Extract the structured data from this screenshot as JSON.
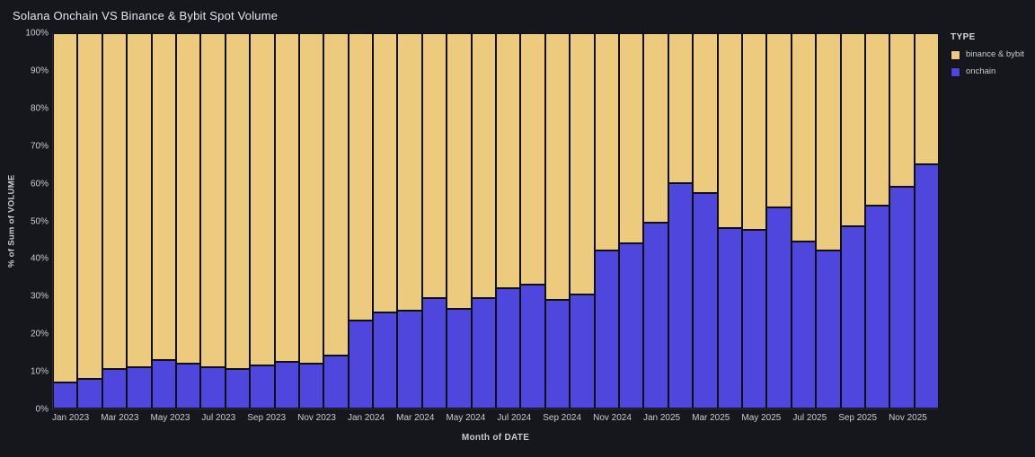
{
  "title": "Solana Onchain VS Binance & Bybit Spot Volume",
  "colors": {
    "background": "#15171c",
    "onchain": "#4f46dd",
    "binance_bybit": "#ecca7e",
    "bar_outline": "#0e0f13",
    "text": "#c9cbd1"
  },
  "chart_data": {
    "type": "bar",
    "stacked": true,
    "stack_mode": "percent",
    "title": "Solana Onchain VS Binance & Bybit Spot Volume",
    "xlabel": "Month of DATE",
    "ylabel": "% of Sum of VOLUME",
    "ylim": [
      0,
      100
    ],
    "grid": false,
    "y_ticks": [
      "0%",
      "10%",
      "20%",
      "30%",
      "40%",
      "50%",
      "60%",
      "70%",
      "80%",
      "90%",
      "100%"
    ],
    "categories": [
      "Jan 2023",
      "Feb 2023",
      "Mar 2023",
      "Apr 2023",
      "May 2023",
      "Jun 2023",
      "Jul 2023",
      "Aug 2023",
      "Sep 2023",
      "Oct 2023",
      "Nov 2023",
      "Dec 2023",
      "Jan 2024",
      "Feb 2024",
      "Mar 2024",
      "Apr 2024",
      "May 2024",
      "Jun 2024",
      "Jul 2024",
      "Aug 2024",
      "Sep 2024",
      "Oct 2024",
      "Nov 2024",
      "Dec 2024",
      "Jan 2025",
      "Feb 2025",
      "Mar 2025",
      "Apr 2025",
      "May 2025",
      "Jun 2025",
      "Jul 2025",
      "Aug 2025",
      "Sep 2025",
      "Oct 2025",
      "Nov 2025",
      "Dec 2025"
    ],
    "x_labels_shown": [
      "Jan 2023",
      "Mar 2023",
      "May 2023",
      "Jul 2023",
      "Sep 2023",
      "Nov 2023",
      "Jan 2024",
      "Mar 2024",
      "May 2024",
      "Jul 2024",
      "Sep 2024",
      "Nov 2024",
      "Jan 2025",
      "Mar 2025",
      "May 2025",
      "Jul 2025",
      "Sep 2025",
      "Nov 2025"
    ],
    "series": [
      {
        "name": "onchain",
        "color": "#4f46dd",
        "values": [
          7,
          8,
          10.5,
          11,
          13,
          12,
          11,
          10.5,
          11.5,
          12.5,
          12,
          14,
          23.5,
          25.5,
          26,
          29.5,
          26.5,
          29.5,
          32,
          33,
          29,
          30.5,
          42,
          44,
          49.5,
          60,
          57.5,
          48,
          47.5,
          53.5,
          44.5,
          42,
          48.5,
          54,
          59,
          65
        ]
      },
      {
        "name": "binance & bybit",
        "color": "#ecca7e",
        "values": [
          93,
          92,
          89.5,
          89,
          87,
          88,
          89,
          89.5,
          88.5,
          87.5,
          88,
          86,
          76.5,
          74.5,
          74,
          70.5,
          73.5,
          70.5,
          68,
          67,
          71,
          69.5,
          58,
          56,
          50.5,
          40,
          42.5,
          52,
          52.5,
          46.5,
          55.5,
          58,
          51.5,
          46,
          41,
          35
        ]
      }
    ],
    "legend": {
      "title": "TYPE",
      "position": "top-right",
      "entries": [
        {
          "label": "binance & bybit",
          "color": "#ecca7e"
        },
        {
          "label": "onchain",
          "color": "#4f46dd"
        }
      ]
    }
  }
}
